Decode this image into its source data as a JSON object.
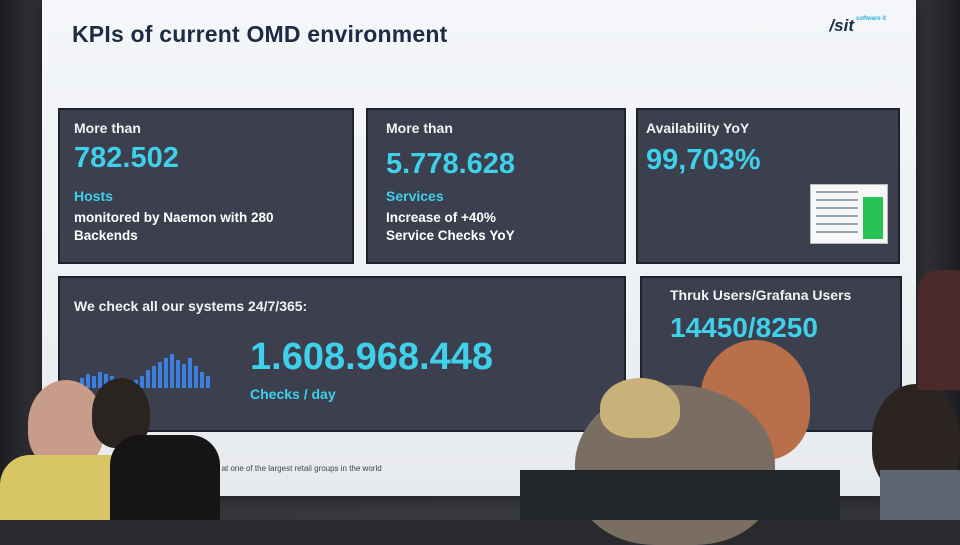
{
  "slide": {
    "title": "KPIs of current OMD environment",
    "logo": "/sit",
    "logo_tag": "software it",
    "footer": "Monitoring at one of the largest retail groups in the world"
  },
  "tiles": [
    {
      "label": "More than",
      "value": "782.502",
      "sub": "Hosts",
      "desc": "monitored by Naemon with 280 Backends"
    },
    {
      "label": "More than",
      "value": "5.778.628",
      "sub": "Services",
      "desc1": "Increase of +40%",
      "desc2": "Service Checks YoY"
    },
    {
      "label": "Availability YoY",
      "value": "99,703%"
    },
    {
      "label": "We check all our systems 24/7/365:",
      "value": "1.608.968.448",
      "sub": "Checks / day"
    },
    {
      "label": "Thruk Users/Grafana Users",
      "value": "14450/8250"
    }
  ],
  "colors": {
    "accent": "#3fd0ea",
    "tile": "#3b3f4e",
    "title": "#1d2b45"
  }
}
